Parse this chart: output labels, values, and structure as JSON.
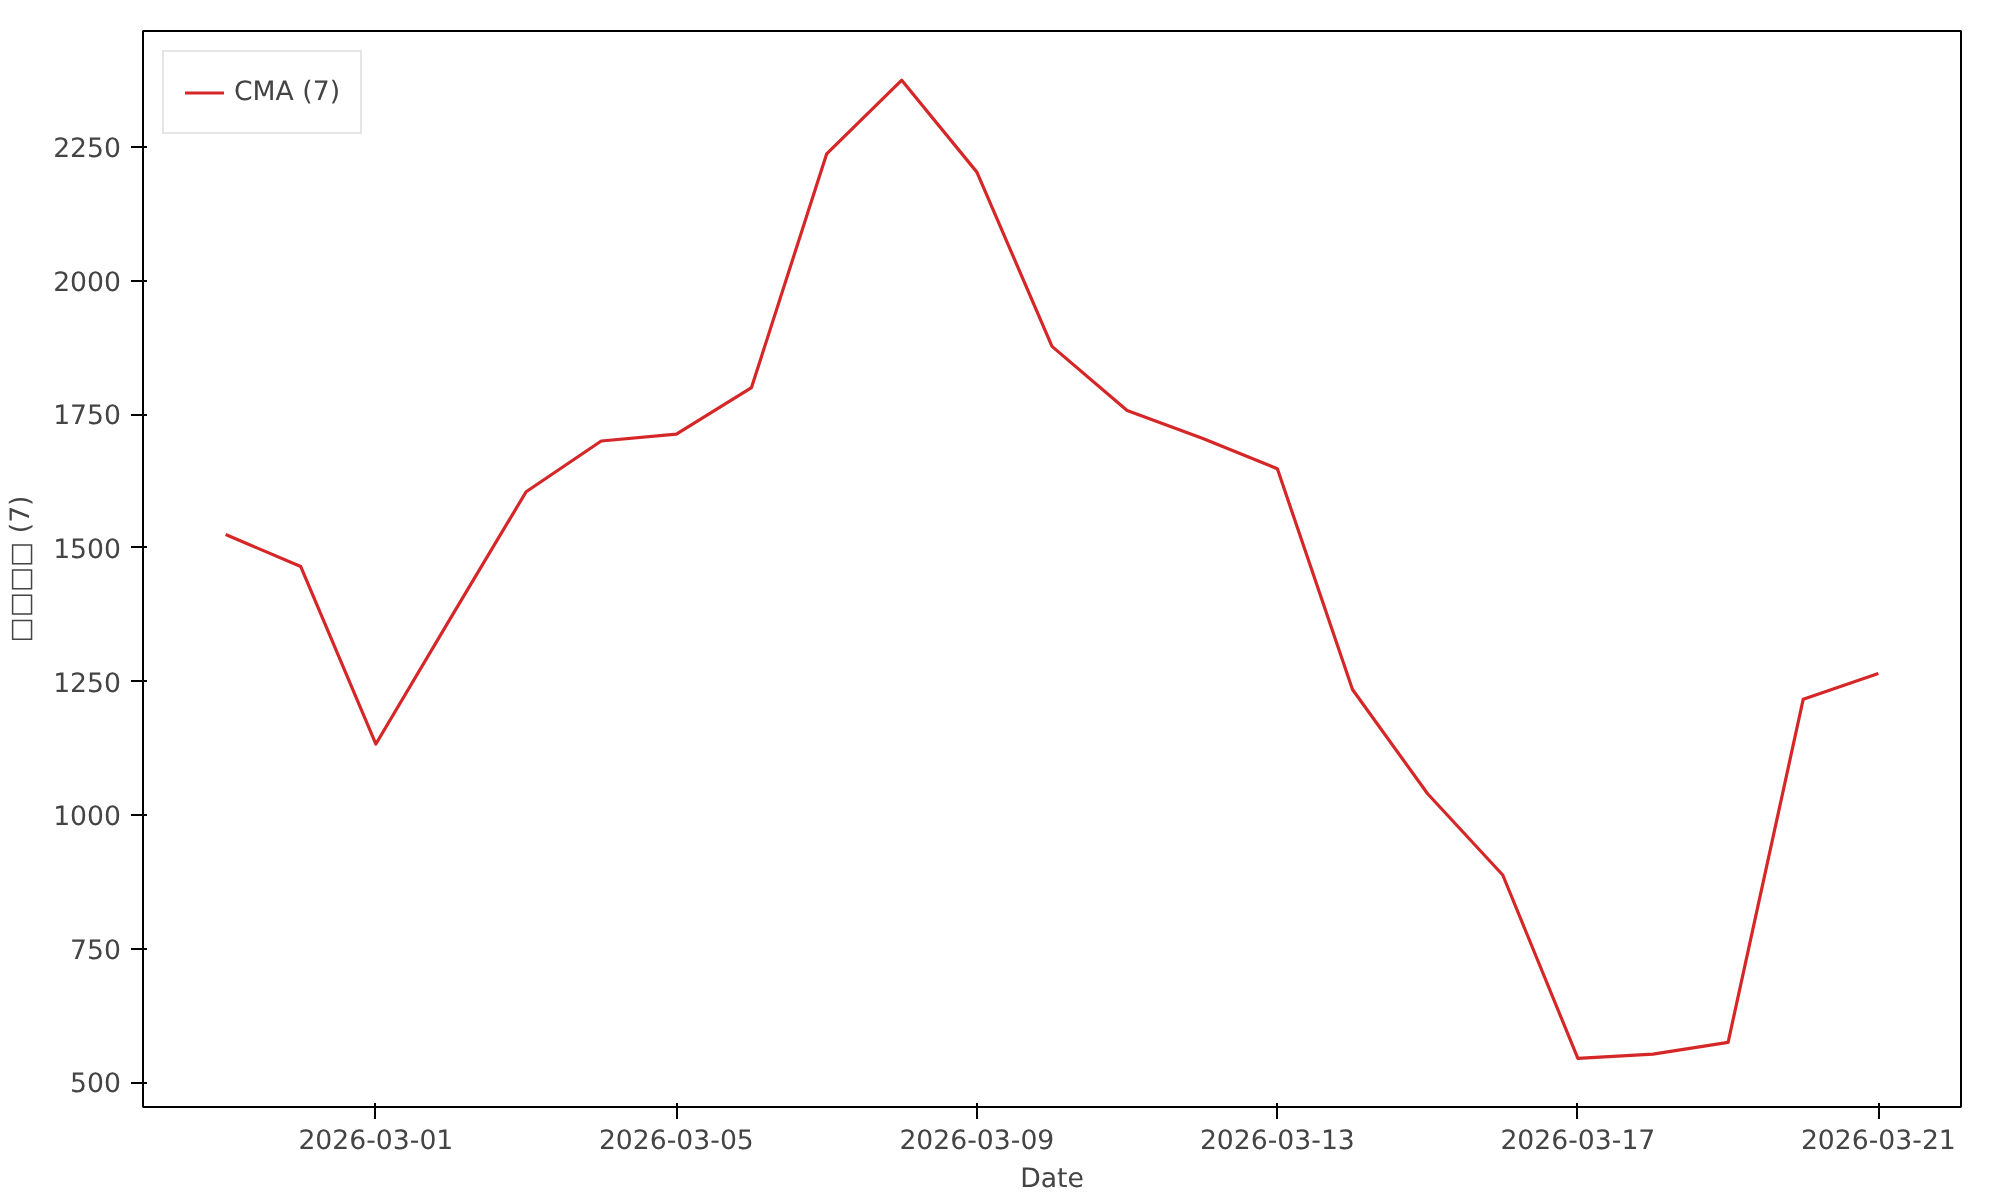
{
  "chart_data": {
    "type": "line",
    "xlabel": "Date",
    "ylabel": "□□□□ (7)",
    "x": [
      "2026-02-27",
      "2026-02-28",
      "2026-03-01",
      "2026-03-02",
      "2026-03-03",
      "2026-03-04",
      "2026-03-05",
      "2026-03-06",
      "2026-03-07",
      "2026-03-08",
      "2026-03-09",
      "2026-03-10",
      "2026-03-11",
      "2026-03-12",
      "2026-03-13",
      "2026-03-14",
      "2026-03-15",
      "2026-03-16",
      "2026-03-17",
      "2026-03-18",
      "2026-03-19",
      "2026-03-20",
      "2026-03-21"
    ],
    "series": [
      {
        "name": "CMA (7)",
        "color": "#d62728",
        "values": [
          1525,
          1465,
          1133,
          1370,
          1605,
          1700,
          1713,
          1800,
          2237,
          2375,
          2203,
          1877,
          1757,
          1705,
          1648,
          1235,
          1040,
          888,
          545,
          553,
          575,
          1217,
          1265
        ]
      }
    ],
    "xlim": [
      "2026-02-25T21:36",
      "2026-03-22T02:24"
    ],
    "xticks": [
      "2026-03-01",
      "2026-03-05",
      "2026-03-09",
      "2026-03-13",
      "2026-03-17",
      "2026-03-21"
    ],
    "ylim": [
      454,
      2467
    ],
    "yticks": [
      500,
      750,
      1000,
      1250,
      1500,
      1750,
      2000,
      2250
    ],
    "grid": false,
    "legend": "top left",
    "line_style": "solid",
    "marker": "none"
  }
}
